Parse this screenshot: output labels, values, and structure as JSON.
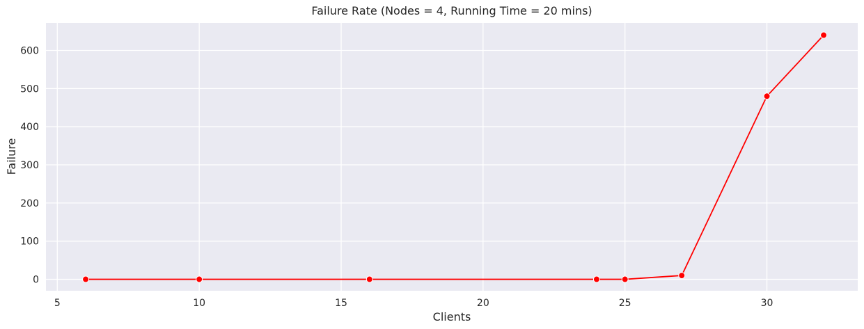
{
  "chart_data": {
    "type": "line",
    "title": "Failure Rate (Nodes = 4, Running Time = 20 mins)",
    "xlabel": "Clients",
    "ylabel": "Failure",
    "xlim": [
      4.6,
      33.2
    ],
    "ylim": [
      -30,
      672
    ],
    "xticks": [
      5,
      10,
      15,
      20,
      25,
      30
    ],
    "yticks": [
      0,
      100,
      200,
      300,
      400,
      500,
      600
    ],
    "xtick_labels": [
      "5",
      "10",
      "15",
      "20",
      "25",
      "30"
    ],
    "ytick_labels": [
      "0",
      "100",
      "200",
      "300",
      "400",
      "500",
      "600"
    ],
    "grid": true,
    "legend": false,
    "series": [
      {
        "color": "#ff0000",
        "marker": "circle",
        "x": [
          6,
          10,
          16,
          24,
          25,
          27,
          30,
          32
        ],
        "y": [
          0,
          0,
          0,
          0,
          0,
          10,
          480,
          640
        ]
      }
    ],
    "colors": {
      "plot_background": "#eaeaf2",
      "grid": "#ffffff",
      "line": "#ff0000",
      "marker_edge": "#ffffff"
    }
  }
}
